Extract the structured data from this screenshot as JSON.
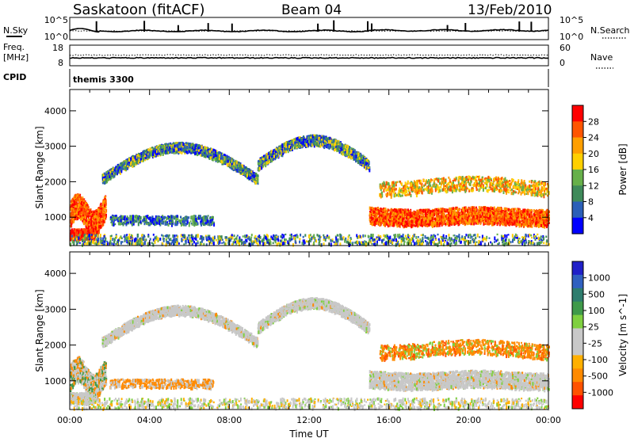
{
  "header": {
    "station": "Saskatoon (fitACF)",
    "beam": "Beam 04",
    "date": "13/Feb/2010"
  },
  "top_panels": {
    "nsky": {
      "left_label": "N.Sky",
      "left_ticks": [
        "10^5",
        "10^0"
      ],
      "right_ticks": [
        "10^5",
        "10^0"
      ],
      "right_label": "N.Search"
    },
    "freq": {
      "left_label_1": "Freq.",
      "left_label_2": "[MHz]",
      "left_ticks": [
        "18",
        "8"
      ],
      "right_ticks": [
        "60",
        "0"
      ],
      "right_label": "Nave"
    },
    "cpid": {
      "label": "CPID",
      "program": "themis 3300"
    }
  },
  "colors": {
    "power_scale": [
      "#0000ff",
      "#2b5fb8",
      "#3f8a5a",
      "#67b04a",
      "#ffd000",
      "#ff9f00",
      "#ff5500",
      "#ff0000"
    ],
    "velocity_scale": [
      "#ff0000",
      "#ff5200",
      "#ff8a00",
      "#ffb000",
      "#c8c8c8",
      "#c8c8c8",
      "#7fd040",
      "#3f9a4a",
      "#2e7d6e",
      "#3060c0",
      "#2020c8"
    ]
  },
  "chart_data": [
    {
      "type": "heatmap",
      "panel": "power",
      "ylabel": "Slant Range [km]",
      "y_ticks": [
        "1000",
        "2000",
        "3000",
        "4000"
      ],
      "ylim": [
        200,
        4600
      ],
      "x_ticks": [
        "00:00",
        "04:00",
        "08:00",
        "12:00",
        "16:00",
        "20:00",
        "00:00"
      ],
      "xlim_hours": [
        0,
        24
      ],
      "colorbar": {
        "label": "Power [dB]",
        "ticks": [
          "4",
          "8",
          "12",
          "16",
          "20",
          "24",
          "28"
        ]
      }
    },
    {
      "type": "heatmap",
      "panel": "velocity",
      "ylabel": "Slant Range [km]",
      "y_ticks": [
        "1000",
        "2000",
        "3000",
        "4000"
      ],
      "ylim": [
        200,
        4600
      ],
      "x_ticks": [
        "00:00",
        "04:00",
        "08:00",
        "12:00",
        "16:00",
        "20:00",
        "00:00"
      ],
      "xlim_hours": [
        0,
        24
      ],
      "xlabel": "Time UT",
      "colorbar": {
        "label": "Velocity [m s^-1]",
        "ticks": [
          "1000",
          "500",
          "100",
          "25",
          "-25",
          "-100",
          "-500",
          "-1000"
        ]
      }
    }
  ]
}
